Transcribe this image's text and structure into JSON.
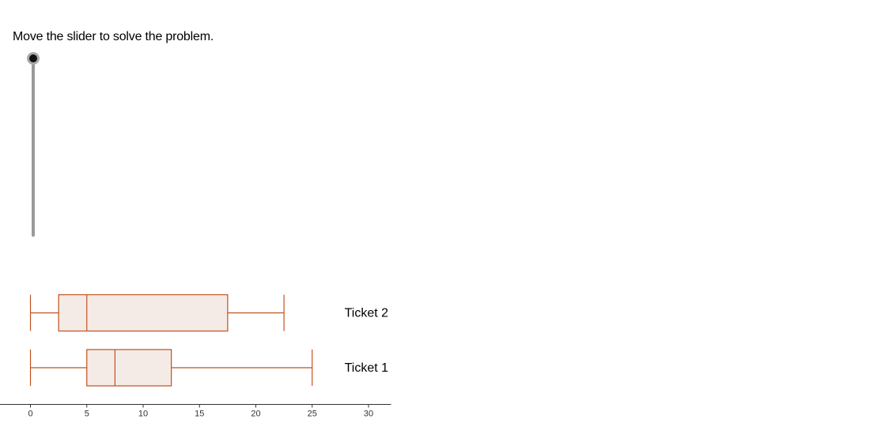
{
  "instruction": "Move the slider to solve the problem.",
  "slider": {
    "orientation": "vertical",
    "position_fraction": 1.0
  },
  "chart_data": {
    "type": "boxplot",
    "title": "",
    "xlabel": "",
    "xlim": [
      -2.7,
      32
    ],
    "xticks": [
      0,
      5,
      10,
      15,
      20,
      25,
      30
    ],
    "grid": false,
    "colors": {
      "stroke": "#c0511f",
      "fill": "#f5ebe6",
      "axis": "#333333"
    },
    "series": [
      {
        "name": "Ticket 2",
        "min": 0,
        "q1": 2.5,
        "median": 5,
        "q3": 17.5,
        "max": 22.5
      },
      {
        "name": "Ticket 1",
        "min": 0,
        "q1": 5,
        "median": 7.5,
        "q3": 12.5,
        "max": 25
      }
    ]
  }
}
